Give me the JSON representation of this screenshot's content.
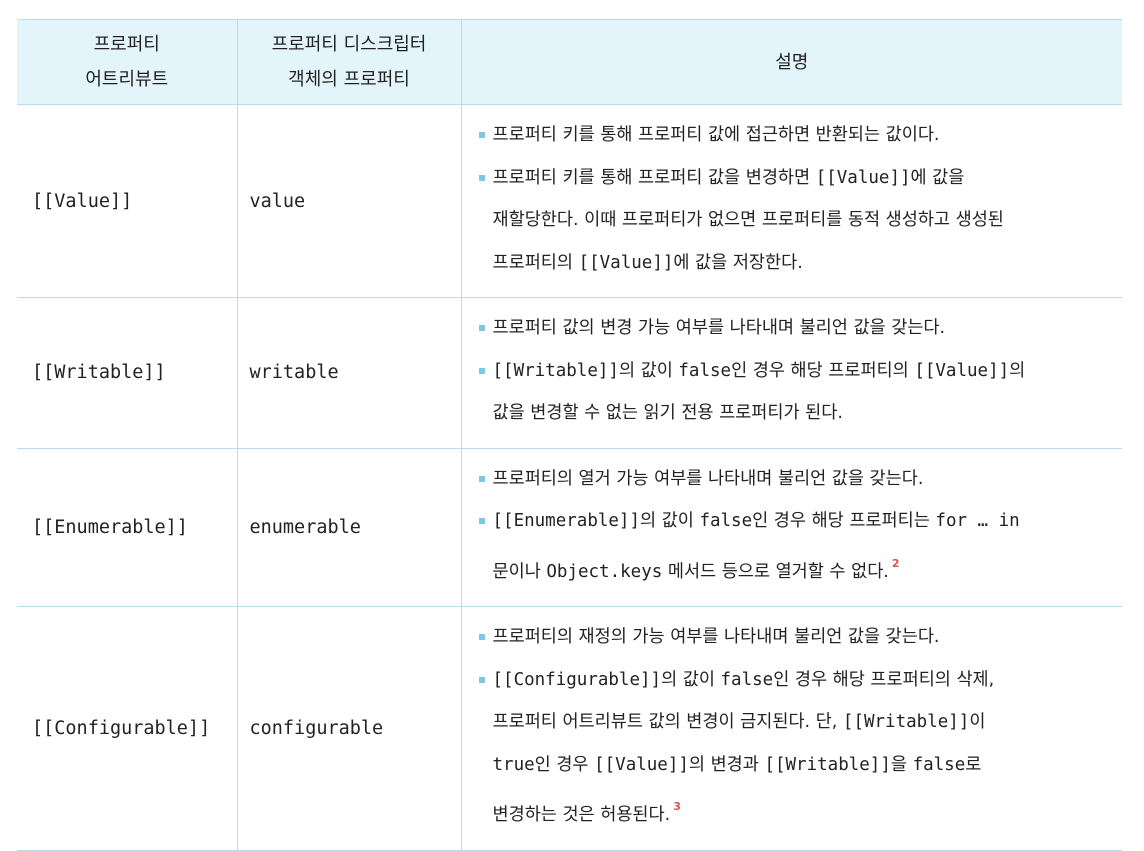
{
  "header": {
    "col1_line1": "프로퍼티",
    "col1_line2": "어트리뷰트",
    "col2_line1": "프로퍼티 디스크립터",
    "col2_line2": "객체의 프로퍼티",
    "col3": "설명"
  },
  "rows": [
    {
      "attribute": "[[Value]]",
      "descriptor": "value",
      "bullets": [
        "프로퍼티 키를 통해 프로퍼티 값에 접근하면 반환되는 값이다.",
        {
          "t1": "프로퍼티 키를 통해 프로퍼티 값을 변경하면 ",
          "c1": "[[Value]]",
          "t2": "에 값을",
          "t3": "재할당한다. 이때 프로퍼티가 없으면 프로퍼티를 동적 생성하고 생성된",
          "t4": "프로퍼티의 ",
          "c2": "[[Value]]",
          "t5": "에 값을 저장한다."
        }
      ]
    },
    {
      "attribute": "[[Writable]]",
      "descriptor": "writable",
      "bullets": [
        "프로퍼티 값의 변경 가능 여부를 나타내며 불리언 값을 갖는다.",
        {
          "c1": "[[Writable]]",
          "t1": "의 값이 ",
          "c2": "false",
          "t2": "인 경우 해당 프로퍼티의 ",
          "c3": "[[Value]]",
          "t3": "의",
          "t4": "값을 변경할 수 없는 읽기 전용 프로퍼티가 된다."
        }
      ]
    },
    {
      "attribute": "[[Enumerable]]",
      "descriptor": "enumerable",
      "bullets": [
        "프로퍼티의 열거 가능 여부를 나타내며 불리언 값을 갖는다.",
        {
          "c1": "[[Enumerable]]",
          "t1": "의 값이 ",
          "c2": "false",
          "t2": "인 경우 해당 프로퍼티는 ",
          "c3": "for … in",
          "t3": "문이나 ",
          "c4": "Object.keys",
          "t4": " 메서드 등으로 열거할 수 없다.",
          "note": "2"
        }
      ]
    },
    {
      "attribute": "[[Configurable]]",
      "descriptor": "configurable",
      "bullets": [
        "프로퍼티의 재정의 가능 여부를 나타내며 불리언 값을 갖는다.",
        {
          "c1": "[[Configurable]]",
          "t1": "의 값이 ",
          "c2": "false",
          "t2": "인 경우 해당 프로퍼티의 삭제,",
          "t3": "프로퍼티 어트리뷰트 값의 변경이 금지된다. 단, ",
          "c3": "[[Writable]]",
          "t4": "이",
          "c4": "true",
          "t5": "인 경우 ",
          "c5": "[[Value]]",
          "t6": "의 변경과 ",
          "c6": "[[Writable]]",
          "t7": "을 ",
          "c7": "false",
          "t8": "로",
          "t9": "변경하는 것은 허용된다.",
          "note": "3"
        }
      ]
    }
  ]
}
